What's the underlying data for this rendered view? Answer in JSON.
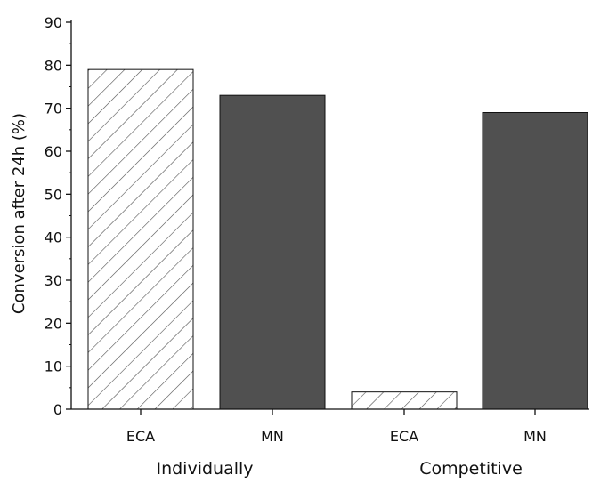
{
  "chart_data": {
    "type": "bar",
    "title": "",
    "xlabel": "",
    "ylabel": "Conversion  after 24h (%)",
    "ylim": [
      0,
      90
    ],
    "yticks": [
      0,
      10,
      20,
      30,
      40,
      50,
      60,
      70,
      80,
      90
    ],
    "categories": [
      "ECA",
      "MN",
      "ECA",
      "MN"
    ],
    "groups": [
      {
        "label": "Individually",
        "categories": [
          "ECA",
          "MN"
        ]
      },
      {
        "label": "Competitive",
        "categories": [
          "ECA",
          "MN"
        ]
      }
    ],
    "values": [
      79,
      73,
      4,
      69
    ],
    "fills": [
      "hatched",
      "solid",
      "hatched",
      "solid"
    ],
    "colors": {
      "solid_bar": "#505050",
      "hatch_line": "#505050",
      "axis": "#111111"
    },
    "grid": false,
    "legend": "none"
  }
}
